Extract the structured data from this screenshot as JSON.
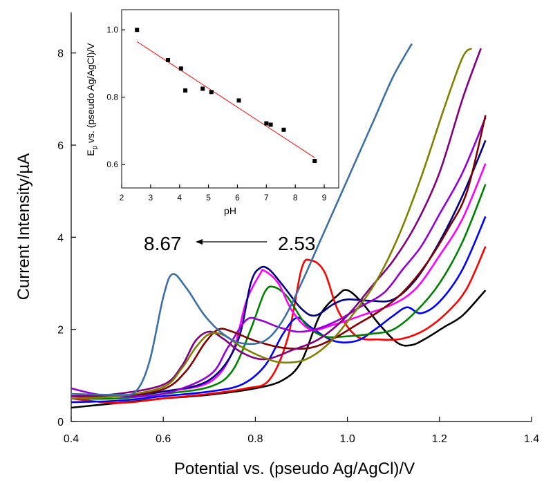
{
  "chart_data": [
    {
      "type": "line",
      "xlabel": "Potential vs. (pseudo Ag/AgCl)/V",
      "ylabel": "Current Intensity/µA",
      "xlim": [
        0.4,
        1.4
      ],
      "ylim": [
        0,
        9.0
      ],
      "xticks": [
        "0.4",
        "0.6",
        "0.8",
        "1.0",
        "1.2",
        "1.4"
      ],
      "yticks": [
        "0",
        "2",
        "4",
        "6",
        "8"
      ],
      "grid": false,
      "annotations": [
        {
          "text": "8.67",
          "x": 0.66,
          "y": 3.9
        },
        {
          "text": "2.53",
          "x": 0.98,
          "y": 3.9
        }
      ],
      "series": [
        {
          "color": "#000000",
          "points": [
            [
              0.4,
              0.3
            ],
            [
              0.5,
              0.4
            ],
            [
              0.6,
              0.5
            ],
            [
              0.7,
              0.58
            ],
            [
              0.8,
              0.72
            ],
            [
              0.86,
              0.9
            ],
            [
              0.9,
              1.3
            ],
            [
              0.94,
              2.3
            ],
            [
              0.98,
              2.75
            ],
            [
              1.0,
              2.85
            ],
            [
              1.03,
              2.6
            ],
            [
              1.07,
              2.1
            ],
            [
              1.11,
              1.7
            ],
            [
              1.14,
              1.66
            ],
            [
              1.17,
              1.8
            ],
            [
              1.21,
              2.05
            ],
            [
              1.25,
              2.3
            ],
            [
              1.3,
              2.85
            ]
          ]
        },
        {
          "color": "#ff0000",
          "points": [
            [
              0.4,
              0.5
            ],
            [
              0.5,
              0.4
            ],
            [
              0.6,
              0.5
            ],
            [
              0.7,
              0.6
            ],
            [
              0.78,
              0.72
            ],
            [
              0.83,
              0.9
            ],
            [
              0.87,
              1.8
            ],
            [
              0.9,
              3.3
            ],
            [
              0.92,
              3.5
            ],
            [
              0.95,
              3.25
            ],
            [
              0.98,
              2.4
            ],
            [
              1.02,
              1.85
            ],
            [
              1.07,
              1.78
            ],
            [
              1.12,
              1.8
            ],
            [
              1.17,
              2.0
            ],
            [
              1.22,
              2.4
            ],
            [
              1.26,
              2.9
            ],
            [
              1.3,
              3.8
            ]
          ]
        },
        {
          "color": "#0000ff",
          "points": [
            [
              0.4,
              0.42
            ],
            [
              0.5,
              0.45
            ],
            [
              0.6,
              0.55
            ],
            [
              0.7,
              0.65
            ],
            [
              0.77,
              0.8
            ],
            [
              0.82,
              1.2
            ],
            [
              0.86,
              1.9
            ],
            [
              0.89,
              2.25
            ],
            [
              0.92,
              2.05
            ],
            [
              0.97,
              1.75
            ],
            [
              1.02,
              1.75
            ],
            [
              1.06,
              2.0
            ],
            [
              1.1,
              2.3
            ],
            [
              1.13,
              2.48
            ],
            [
              1.16,
              2.35
            ],
            [
              1.2,
              2.6
            ],
            [
              1.25,
              3.3
            ],
            [
              1.3,
              4.45
            ]
          ]
        },
        {
          "color": "#008000",
          "points": [
            [
              0.4,
              0.5
            ],
            [
              0.5,
              0.5
            ],
            [
              0.6,
              0.6
            ],
            [
              0.7,
              0.75
            ],
            [
              0.75,
              1.1
            ],
            [
              0.79,
              2.0
            ],
            [
              0.82,
              2.8
            ],
            [
              0.84,
              2.92
            ],
            [
              0.87,
              2.7
            ],
            [
              0.91,
              2.1
            ],
            [
              0.95,
              1.85
            ],
            [
              1.0,
              1.85
            ],
            [
              1.05,
              1.9
            ],
            [
              1.1,
              2.0
            ],
            [
              1.15,
              2.4
            ],
            [
              1.2,
              3.0
            ],
            [
              1.25,
              3.9
            ],
            [
              1.3,
              5.15
            ]
          ]
        },
        {
          "color": "#ff00ff",
          "points": [
            [
              0.4,
              0.55
            ],
            [
              0.5,
              0.55
            ],
            [
              0.6,
              0.65
            ],
            [
              0.7,
              0.85
            ],
            [
              0.75,
              1.5
            ],
            [
              0.78,
              2.6
            ],
            [
              0.81,
              3.2
            ],
            [
              0.82,
              3.27
            ],
            [
              0.85,
              3.0
            ],
            [
              0.88,
              2.4
            ],
            [
              0.92,
              2.0
            ],
            [
              0.97,
              2.1
            ],
            [
              1.03,
              2.3
            ],
            [
              1.1,
              2.55
            ],
            [
              1.15,
              2.9
            ],
            [
              1.2,
              3.6
            ],
            [
              1.25,
              4.4
            ],
            [
              1.3,
              5.6
            ]
          ]
        },
        {
          "color": "#000080",
          "points": [
            [
              0.4,
              0.55
            ],
            [
              0.5,
              0.55
            ],
            [
              0.6,
              0.65
            ],
            [
              0.7,
              0.9
            ],
            [
              0.76,
              1.7
            ],
            [
              0.79,
              3.0
            ],
            [
              0.81,
              3.33
            ],
            [
              0.83,
              3.3
            ],
            [
              0.86,
              2.95
            ],
            [
              0.9,
              2.45
            ],
            [
              0.93,
              2.3
            ],
            [
              0.97,
              2.55
            ],
            [
              1.0,
              2.65
            ],
            [
              1.05,
              2.62
            ],
            [
              1.1,
              2.65
            ],
            [
              1.15,
              3.1
            ],
            [
              1.2,
              3.9
            ],
            [
              1.25,
              4.9
            ],
            [
              1.3,
              6.1
            ]
          ]
        },
        {
          "color": "#9400d3",
          "points": [
            [
              0.4,
              0.72
            ],
            [
              0.45,
              0.6
            ],
            [
              0.5,
              0.55
            ],
            [
              0.6,
              0.6
            ],
            [
              0.7,
              1.0
            ],
            [
              0.74,
              1.6
            ],
            [
              0.78,
              2.2
            ],
            [
              0.81,
              2.2
            ],
            [
              0.85,
              2.05
            ],
            [
              0.89,
              1.95
            ],
            [
              0.93,
              2.0
            ],
            [
              0.98,
              2.2
            ],
            [
              1.03,
              2.5
            ],
            [
              1.08,
              2.8
            ],
            [
              1.12,
              3.3
            ],
            [
              1.16,
              3.8
            ],
            [
              1.2,
              4.5
            ],
            [
              1.25,
              5.4
            ],
            [
              1.3,
              6.6
            ]
          ]
        },
        {
          "color": "#800000",
          "points": [
            [
              0.4,
              0.55
            ],
            [
              0.5,
              0.55
            ],
            [
              0.6,
              0.7
            ],
            [
              0.65,
              1.1
            ],
            [
              0.69,
              1.7
            ],
            [
              0.72,
              2.0
            ],
            [
              0.75,
              1.95
            ],
            [
              0.8,
              1.75
            ],
            [
              0.86,
              1.6
            ],
            [
              0.92,
              1.6
            ],
            [
              0.97,
              1.8
            ],
            [
              1.02,
              2.1
            ],
            [
              1.07,
              2.4
            ],
            [
              1.12,
              2.8
            ],
            [
              1.17,
              3.4
            ],
            [
              1.22,
              4.2
            ],
            [
              1.26,
              5.0
            ],
            [
              1.3,
              6.65
            ]
          ]
        },
        {
          "color": "#800080",
          "points": [
            [
              0.4,
              0.55
            ],
            [
              0.5,
              0.6
            ],
            [
              0.6,
              0.8
            ],
            [
              0.64,
              1.2
            ],
            [
              0.67,
              1.75
            ],
            [
              0.7,
              1.95
            ],
            [
              0.73,
              1.8
            ],
            [
              0.77,
              1.5
            ],
            [
              0.82,
              1.35
            ],
            [
              0.88,
              1.55
            ],
            [
              0.94,
              1.8
            ],
            [
              1.0,
              2.3
            ],
            [
              1.05,
              2.9
            ],
            [
              1.1,
              3.5
            ],
            [
              1.15,
              4.3
            ],
            [
              1.2,
              5.4
            ],
            [
              1.25,
              7.0
            ],
            [
              1.29,
              8.1
            ]
          ]
        },
        {
          "color": "#808000",
          "points": [
            [
              0.4,
              0.5
            ],
            [
              0.5,
              0.55
            ],
            [
              0.6,
              0.75
            ],
            [
              0.64,
              1.15
            ],
            [
              0.67,
              1.6
            ],
            [
              0.7,
              1.9
            ],
            [
              0.73,
              1.88
            ],
            [
              0.77,
              1.62
            ],
            [
              0.82,
              1.38
            ],
            [
              0.86,
              1.28
            ],
            [
              0.91,
              1.35
            ],
            [
              0.96,
              1.7
            ],
            [
              1.01,
              2.3
            ],
            [
              1.06,
              3.0
            ],
            [
              1.11,
              4.0
            ],
            [
              1.16,
              5.3
            ],
            [
              1.21,
              6.8
            ],
            [
              1.25,
              7.9
            ],
            [
              1.27,
              8.1
            ]
          ]
        },
        {
          "color": "#3b6fa6",
          "points": [
            [
              0.4,
              0.6
            ],
            [
              0.5,
              0.58
            ],
            [
              0.54,
              0.65
            ],
            [
              0.57,
              1.3
            ],
            [
              0.6,
              2.7
            ],
            [
              0.62,
              3.2
            ],
            [
              0.65,
              2.9
            ],
            [
              0.69,
              2.3
            ],
            [
              0.73,
              1.9
            ],
            [
              0.77,
              1.7
            ],
            [
              0.82,
              1.75
            ],
            [
              0.86,
              2.2
            ],
            [
              0.9,
              3.0
            ],
            [
              0.94,
              3.9
            ],
            [
              0.98,
              4.8
            ],
            [
              1.02,
              5.7
            ],
            [
              1.06,
              6.6
            ],
            [
              1.1,
              7.5
            ],
            [
              1.14,
              8.2
            ]
          ]
        }
      ]
    },
    {
      "type": "scatter",
      "xlabel": "pH",
      "ylabel": "Eₚ vs. (pseudo Ag/AgCl)/V",
      "ylabel_main": "E",
      "ylabel_sub": "p",
      "ylabel_rest": " vs. (pseudo Ag/AgCl)/V",
      "xlim": [
        2,
        9.5
      ],
      "ylim": [
        0.53,
        1.06
      ],
      "xticks": [
        "2",
        "3",
        "4",
        "5",
        "6",
        "7",
        "8",
        "9"
      ],
      "yticks": [
        "0.6",
        "0.8",
        "1.0"
      ],
      "points": [
        [
          2.53,
          1.0
        ],
        [
          3.6,
          0.91
        ],
        [
          4.05,
          0.885
        ],
        [
          4.2,
          0.82
        ],
        [
          4.8,
          0.825
        ],
        [
          5.1,
          0.815
        ],
        [
          6.05,
          0.79
        ],
        [
          7.0,
          0.722
        ],
        [
          7.15,
          0.718
        ],
        [
          7.6,
          0.703
        ],
        [
          8.67,
          0.61
        ]
      ],
      "fit_line": [
        [
          2.53,
          0.965
        ],
        [
          8.67,
          0.62
        ]
      ],
      "fit_color": "#ff0000"
    }
  ]
}
